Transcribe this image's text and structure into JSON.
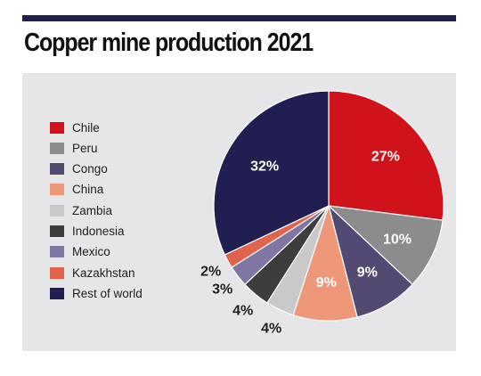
{
  "title": "Copper mine production 2021",
  "colors": {
    "topbar": "#1f1f4e",
    "panel": "#e6e6e8",
    "text_dark": "#222222"
  },
  "chart_data": {
    "type": "pie",
    "title": "Copper mine production 2021",
    "legend_position": "left",
    "slices": [
      {
        "name": "Chile",
        "value": 27,
        "label": "27%",
        "color": "#d0121b",
        "label_color": "#ffffff",
        "label_inside": true
      },
      {
        "name": "Peru",
        "value": 10,
        "label": "10%",
        "color": "#8c8c8c",
        "label_color": "#ffffff",
        "label_inside": true
      },
      {
        "name": "Congo",
        "value": 9,
        "label": "9%",
        "color": "#534a74",
        "label_color": "#ffffff",
        "label_inside": true
      },
      {
        "name": "China",
        "value": 9,
        "label": "9%",
        "color": "#ee9779",
        "label_color": "#ffffff",
        "label_inside": true
      },
      {
        "name": "Zambia",
        "value": 4,
        "label": "4%",
        "color": "#c9c9c9",
        "label_color": "#222222",
        "label_inside": false
      },
      {
        "name": "Indonesia",
        "value": 4,
        "label": "4%",
        "color": "#3d3d3d",
        "label_color": "#222222",
        "label_inside": false
      },
      {
        "name": "Mexico",
        "value": 3,
        "label": "3%",
        "color": "#7f76a3",
        "label_color": "#222222",
        "label_inside": false
      },
      {
        "name": "Kazakhstan",
        "value": 2,
        "label": "2%",
        "color": "#e0644c",
        "label_color": "#222222",
        "label_inside": false
      },
      {
        "name": "Rest of world",
        "value": 32,
        "label": "32%",
        "color": "#211f52",
        "label_color": "#ffffff",
        "label_inside": true
      }
    ]
  }
}
